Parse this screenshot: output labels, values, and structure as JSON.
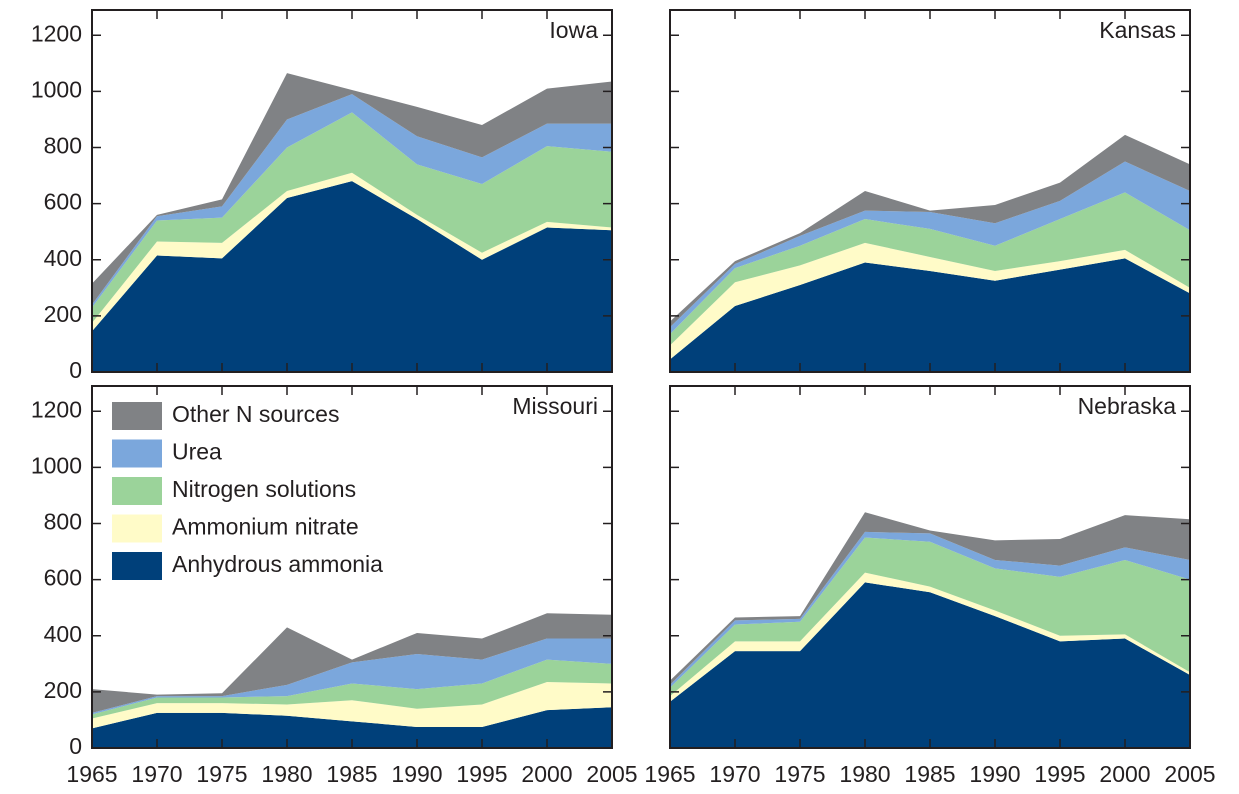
{
  "chart_data": [
    {
      "type": "stacked_area",
      "title": "Iowa",
      "x": [
        1965,
        1970,
        1975,
        1980,
        1985,
        1990,
        1995,
        2000,
        2005
      ],
      "xlim": [
        1965,
        2005
      ],
      "xticks": [
        1965,
        1970,
        1975,
        1980,
        1985,
        1990,
        1995,
        2000,
        2005
      ],
      "ylim": [
        0,
        1290
      ],
      "yticks": [
        0,
        200,
        400,
        600,
        800,
        1000,
        1200
      ],
      "series": [
        {
          "name": "Anhydrous ammonia",
          "color": "#00407a",
          "values": [
            145,
            415,
            405,
            620,
            680,
            545,
            400,
            515,
            505
          ]
        },
        {
          "name": "Ammonium nitrate",
          "color": "#fffbc8",
          "values": [
            30,
            50,
            55,
            25,
            30,
            15,
            25,
            20,
            10
          ]
        },
        {
          "name": "Nitrogen solutions",
          "color": "#9bd39a",
          "values": [
            55,
            75,
            90,
            155,
            215,
            180,
            245,
            270,
            270
          ]
        },
        {
          "name": "Urea",
          "color": "#7ba7dc",
          "values": [
            10,
            15,
            40,
            100,
            65,
            100,
            95,
            80,
            100
          ]
        },
        {
          "name": "Other N sources",
          "color": "#808285",
          "values": [
            75,
            5,
            25,
            165,
            15,
            105,
            115,
            125,
            150
          ]
        }
      ]
    },
    {
      "type": "stacked_area",
      "title": "Kansas",
      "x": [
        1965,
        1970,
        1975,
        1980,
        1985,
        1990,
        1995,
        2000,
        2005
      ],
      "xlim": [
        1965,
        2005
      ],
      "xticks": [
        1965,
        1970,
        1975,
        1980,
        1985,
        1990,
        1995,
        2000,
        2005
      ],
      "ylim": [
        0,
        1290
      ],
      "yticks": [
        0,
        200,
        400,
        600,
        800,
        1000,
        1200
      ],
      "series": [
        {
          "name": "Anhydrous ammonia",
          "color": "#00407a",
          "values": [
            45,
            235,
            310,
            390,
            360,
            325,
            365,
            405,
            280
          ]
        },
        {
          "name": "Ammonium nitrate",
          "color": "#fffbc8",
          "values": [
            50,
            85,
            70,
            70,
            50,
            35,
            30,
            30,
            20
          ]
        },
        {
          "name": "Nitrogen solutions",
          "color": "#9bd39a",
          "values": [
            40,
            50,
            70,
            85,
            100,
            90,
            150,
            205,
            205
          ]
        },
        {
          "name": "Urea",
          "color": "#7ba7dc",
          "values": [
            25,
            15,
            35,
            30,
            60,
            80,
            65,
            110,
            140
          ]
        },
        {
          "name": "Other N sources",
          "color": "#808285",
          "values": [
            20,
            10,
            10,
            70,
            5,
            65,
            65,
            95,
            95
          ]
        }
      ]
    },
    {
      "type": "stacked_area",
      "title": "Missouri",
      "legend": "upper left",
      "x": [
        1965,
        1970,
        1975,
        1980,
        1985,
        1990,
        1995,
        2000,
        2005
      ],
      "xlim": [
        1965,
        2005
      ],
      "xticks": [
        1965,
        1970,
        1975,
        1980,
        1985,
        1990,
        1995,
        2000,
        2005
      ],
      "ylim": [
        0,
        1290
      ],
      "yticks": [
        0,
        200,
        400,
        600,
        800,
        1000,
        1200
      ],
      "series": [
        {
          "name": "Anhydrous ammonia",
          "color": "#00407a",
          "values": [
            70,
            125,
            125,
            115,
            95,
            75,
            75,
            135,
            145
          ]
        },
        {
          "name": "Ammonium nitrate",
          "color": "#fffbc8",
          "values": [
            35,
            35,
            35,
            40,
            75,
            65,
            80,
            100,
            85
          ]
        },
        {
          "name": "Nitrogen solutions",
          "color": "#9bd39a",
          "values": [
            15,
            20,
            20,
            30,
            60,
            70,
            75,
            80,
            70
          ]
        },
        {
          "name": "Urea",
          "color": "#7ba7dc",
          "values": [
            5,
            5,
            5,
            40,
            75,
            125,
            85,
            75,
            90
          ]
        },
        {
          "name": "Other N sources",
          "color": "#808285",
          "values": [
            85,
            5,
            10,
            205,
            10,
            75,
            75,
            90,
            85
          ]
        }
      ]
    },
    {
      "type": "stacked_area",
      "title": "Nebraska",
      "x": [
        1965,
        1970,
        1975,
        1980,
        1985,
        1990,
        1995,
        2000,
        2005
      ],
      "xlim": [
        1965,
        2005
      ],
      "xticks": [
        1965,
        1970,
        1975,
        1980,
        1985,
        1990,
        1995,
        2000,
        2005
      ],
      "ylim": [
        0,
        1290
      ],
      "yticks": [
        0,
        200,
        400,
        600,
        800,
        1000,
        1200
      ],
      "series": [
        {
          "name": "Anhydrous ammonia",
          "color": "#00407a",
          "values": [
            165,
            345,
            345,
            590,
            555,
            470,
            380,
            390,
            260
          ]
        },
        {
          "name": "Ammonium nitrate",
          "color": "#fffbc8",
          "values": [
            20,
            35,
            35,
            35,
            20,
            20,
            20,
            15,
            10
          ]
        },
        {
          "name": "Nitrogen solutions",
          "color": "#9bd39a",
          "values": [
            30,
            60,
            70,
            125,
            160,
            150,
            210,
            265,
            330
          ]
        },
        {
          "name": "Urea",
          "color": "#7ba7dc",
          "values": [
            10,
            15,
            10,
            20,
            30,
            30,
            40,
            45,
            70
          ]
        },
        {
          "name": "Other N sources",
          "color": "#808285",
          "values": [
            15,
            10,
            10,
            70,
            10,
            70,
            95,
            115,
            145
          ]
        }
      ]
    }
  ]
}
